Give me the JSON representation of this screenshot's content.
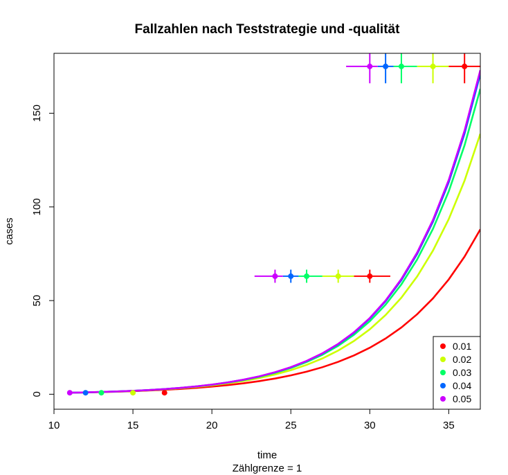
{
  "chart_data": {
    "type": "line",
    "title": "Fallzahlen nach Teststrategie und -qualität",
    "xlabel": "time",
    "sublabel": "Zählgrenze =  1",
    "ylabel": "cases",
    "xlim": [
      10,
      37
    ],
    "ylim": [
      -8,
      182
    ],
    "xticks": [
      10,
      15,
      20,
      25,
      30,
      35
    ],
    "yticks": [
      0,
      50,
      100,
      150
    ],
    "legend_position": "bottom-right",
    "series": [
      {
        "name": "0.01",
        "color": "#FF0000",
        "y_at_11": 0.8,
        "y_at_37": 88
      },
      {
        "name": "0.02",
        "color": "#CCFF00",
        "y_at_11": 0.8,
        "y_at_37": 139
      },
      {
        "name": "0.03",
        "color": "#00FF66",
        "y_at_11": 0.8,
        "y_at_37": 163
      },
      {
        "name": "0.04",
        "color": "#0066FF",
        "y_at_11": 0.8,
        "y_at_37": 171
      },
      {
        "name": "0.05",
        "color": "#CC00FF",
        "y_at_11": 0.8,
        "y_at_37": 173
      }
    ],
    "start_points": [
      {
        "series": "0.01",
        "x": 17,
        "y": 0.8
      },
      {
        "series": "0.02",
        "x": 15,
        "y": 0.8
      },
      {
        "series": "0.03",
        "x": 13,
        "y": 0.8
      },
      {
        "series": "0.04",
        "x": 12,
        "y": 0.8
      },
      {
        "series": "0.05",
        "x": 11,
        "y": 0.8
      }
    ],
    "error_bars_mid": {
      "y": 63,
      "y_err": 3.5,
      "color_range": [
        22.7,
        31.3
      ],
      "points": [
        {
          "series": "0.05",
          "x": 24
        },
        {
          "series": "0.04",
          "x": 25
        },
        {
          "series": "0.03",
          "x": 26
        },
        {
          "series": "0.02",
          "x": 28
        },
        {
          "series": "0.01",
          "x": 30
        }
      ]
    },
    "error_bars_top": {
      "y": 175,
      "y_err": 9,
      "color_range": [
        28.5,
        37.5
      ],
      "points": [
        {
          "series": "0.05",
          "x": 30
        },
        {
          "series": "0.04",
          "x": 31
        },
        {
          "series": "0.03",
          "x": 32
        },
        {
          "series": "0.02",
          "x": 34
        },
        {
          "series": "0.01",
          "x": 36
        }
      ]
    }
  }
}
